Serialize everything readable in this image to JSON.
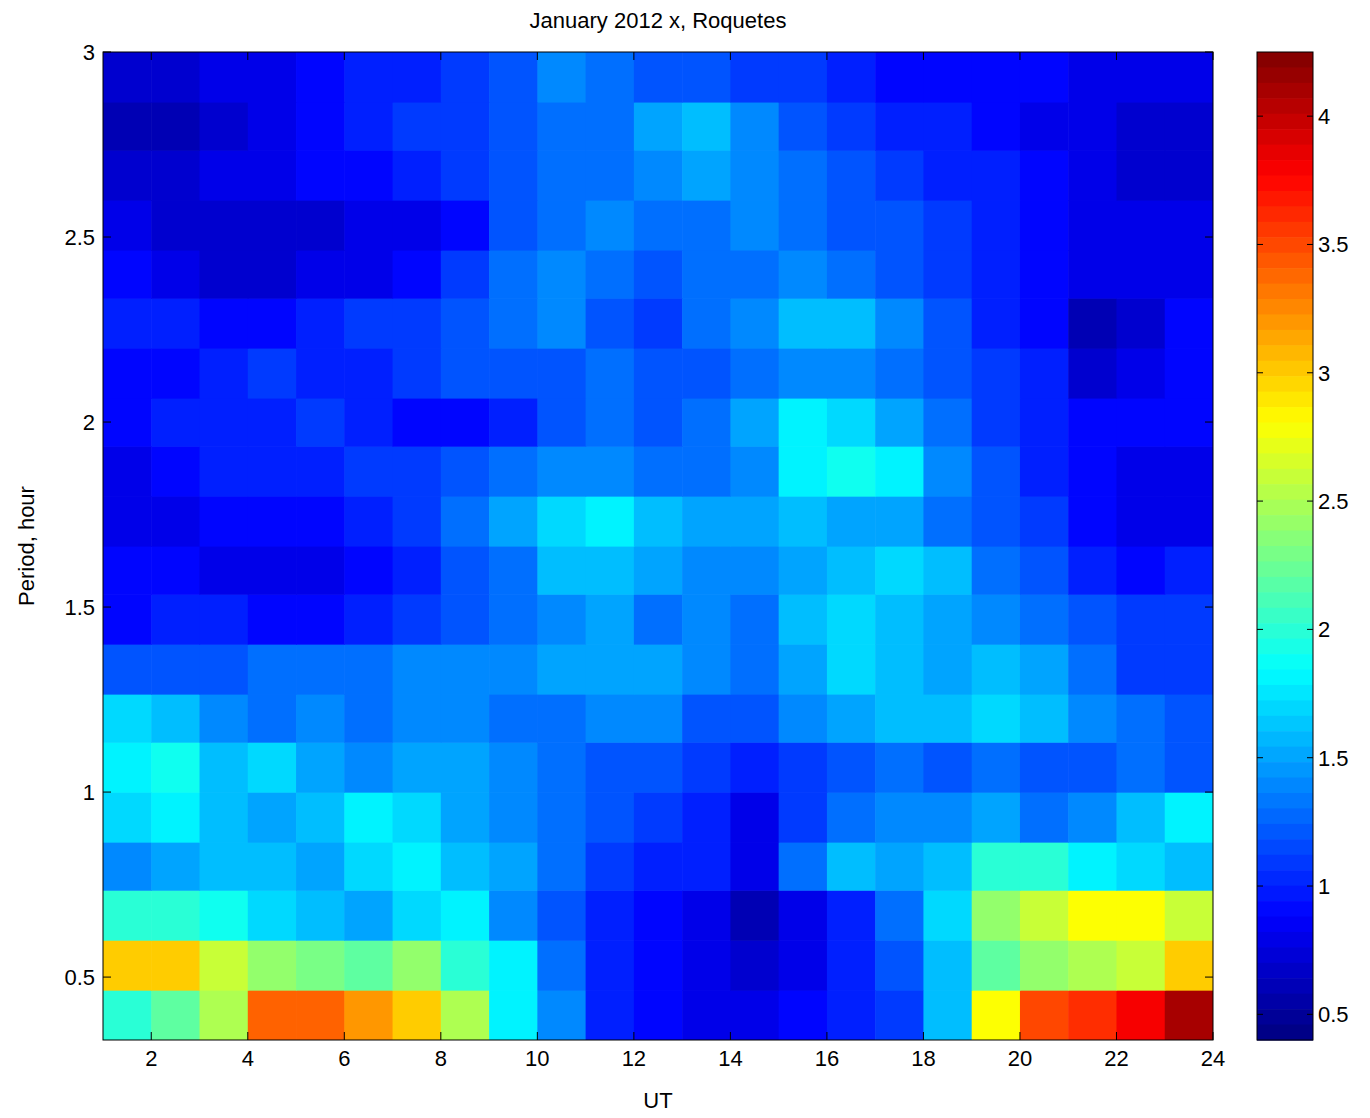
{
  "chart_data": {
    "type": "heatmap",
    "title": "January 2012 x, Roquetes",
    "xlabel": "UT",
    "ylabel": "Period, hour",
    "xlim": [
      1,
      24
    ],
    "ylim": [
      0.33,
      3
    ],
    "xticks": [
      2,
      4,
      6,
      8,
      10,
      12,
      14,
      16,
      18,
      20,
      22,
      24
    ],
    "yticks": [
      0.5,
      1,
      1.5,
      2,
      2.5,
      3
    ],
    "x": [
      1.5,
      2.5,
      3.5,
      4.5,
      5.5,
      6.5,
      7.5,
      8.5,
      9.5,
      10.5,
      11.5,
      12.5,
      13.5,
      14.5,
      15.5,
      16.5,
      17.5,
      18.5,
      19.5,
      20.5,
      21.5,
      22.5,
      23.5
    ],
    "y": [
      0.4,
      0.53,
      0.67,
      0.8,
      0.93,
      1.07,
      1.2,
      1.33,
      1.47,
      1.6,
      1.73,
      1.87,
      2.0,
      2.13,
      2.27,
      2.4,
      2.53,
      2.67,
      2.8,
      2.93
    ],
    "z": [
      [
        2.0,
        2.2,
        2.5,
        3.4,
        3.4,
        3.2,
        3.0,
        2.5,
        1.8,
        1.4,
        1.0,
        0.9,
        0.8,
        0.8,
        0.9,
        1.0,
        1.1,
        1.6,
        2.8,
        3.5,
        3.6,
        3.8,
        4.1
      ],
      [
        3.0,
        3.0,
        2.6,
        2.4,
        2.3,
        2.2,
        2.4,
        2.0,
        1.8,
        1.3,
        1.0,
        0.9,
        0.8,
        0.7,
        0.8,
        1.0,
        1.2,
        1.6,
        2.2,
        2.4,
        2.5,
        2.6,
        3.0
      ],
      [
        2.0,
        2.0,
        1.9,
        1.7,
        1.6,
        1.5,
        1.7,
        1.8,
        1.4,
        1.2,
        1.0,
        0.9,
        0.8,
        0.6,
        0.8,
        1.0,
        1.3,
        1.7,
        2.4,
        2.6,
        2.8,
        2.8,
        2.6
      ],
      [
        1.4,
        1.5,
        1.6,
        1.6,
        1.5,
        1.7,
        1.8,
        1.6,
        1.5,
        1.3,
        1.1,
        1.0,
        1.0,
        0.8,
        1.3,
        1.6,
        1.5,
        1.6,
        2.0,
        2.0,
        1.8,
        1.7,
        1.6
      ],
      [
        1.7,
        1.8,
        1.6,
        1.5,
        1.6,
        1.8,
        1.7,
        1.5,
        1.4,
        1.3,
        1.2,
        1.1,
        1.0,
        0.8,
        1.1,
        1.3,
        1.4,
        1.4,
        1.5,
        1.3,
        1.4,
        1.6,
        1.8
      ],
      [
        1.8,
        1.9,
        1.6,
        1.7,
        1.5,
        1.4,
        1.5,
        1.5,
        1.4,
        1.3,
        1.2,
        1.2,
        1.1,
        1.0,
        1.1,
        1.2,
        1.3,
        1.2,
        1.3,
        1.2,
        1.2,
        1.3,
        1.2
      ],
      [
        1.7,
        1.6,
        1.4,
        1.3,
        1.4,
        1.3,
        1.4,
        1.4,
        1.3,
        1.3,
        1.4,
        1.4,
        1.2,
        1.2,
        1.4,
        1.5,
        1.6,
        1.6,
        1.7,
        1.6,
        1.4,
        1.3,
        1.2
      ],
      [
        1.2,
        1.2,
        1.2,
        1.3,
        1.3,
        1.3,
        1.4,
        1.4,
        1.4,
        1.5,
        1.5,
        1.5,
        1.4,
        1.3,
        1.5,
        1.7,
        1.6,
        1.5,
        1.6,
        1.5,
        1.3,
        1.1,
        1.1
      ],
      [
        0.9,
        1.0,
        1.0,
        0.9,
        0.9,
        1.0,
        1.1,
        1.2,
        1.3,
        1.4,
        1.5,
        1.3,
        1.4,
        1.3,
        1.6,
        1.7,
        1.6,
        1.5,
        1.4,
        1.3,
        1.2,
        1.1,
        1.1
      ],
      [
        0.9,
        0.9,
        0.8,
        0.8,
        0.8,
        0.9,
        1.0,
        1.2,
        1.3,
        1.6,
        1.6,
        1.5,
        1.4,
        1.4,
        1.5,
        1.6,
        1.7,
        1.6,
        1.3,
        1.2,
        1.0,
        0.9,
        1.0
      ],
      [
        0.8,
        0.8,
        0.9,
        0.9,
        0.9,
        1.0,
        1.1,
        1.3,
        1.5,
        1.7,
        1.8,
        1.6,
        1.5,
        1.5,
        1.6,
        1.5,
        1.5,
        1.3,
        1.2,
        1.1,
        0.9,
        0.8,
        0.8
      ],
      [
        0.8,
        0.9,
        1.0,
        1.0,
        1.0,
        1.1,
        1.1,
        1.2,
        1.3,
        1.4,
        1.4,
        1.3,
        1.3,
        1.4,
        1.8,
        1.9,
        1.8,
        1.4,
        1.2,
        1.0,
        0.9,
        0.8,
        0.8
      ],
      [
        0.9,
        1.0,
        1.0,
        1.0,
        1.1,
        1.0,
        0.9,
        0.9,
        1.0,
        1.2,
        1.3,
        1.2,
        1.3,
        1.5,
        1.8,
        1.7,
        1.5,
        1.3,
        1.1,
        1.0,
        0.9,
        0.9,
        0.9
      ],
      [
        0.9,
        0.9,
        1.0,
        1.1,
        1.0,
        1.0,
        1.1,
        1.2,
        1.2,
        1.2,
        1.3,
        1.2,
        1.2,
        1.3,
        1.4,
        1.4,
        1.3,
        1.2,
        1.1,
        1.0,
        0.7,
        0.8,
        0.9
      ],
      [
        1.0,
        1.0,
        0.9,
        0.9,
        1.0,
        1.1,
        1.1,
        1.2,
        1.3,
        1.4,
        1.2,
        1.1,
        1.3,
        1.4,
        1.6,
        1.6,
        1.4,
        1.2,
        1.0,
        0.9,
        0.6,
        0.7,
        0.9
      ],
      [
        0.9,
        0.8,
        0.7,
        0.7,
        0.8,
        0.8,
        0.9,
        1.1,
        1.3,
        1.4,
        1.3,
        1.2,
        1.3,
        1.3,
        1.4,
        1.3,
        1.2,
        1.1,
        1.0,
        0.9,
        0.8,
        0.8,
        0.8
      ],
      [
        0.8,
        0.7,
        0.7,
        0.7,
        0.7,
        0.8,
        0.8,
        0.9,
        1.2,
        1.3,
        1.4,
        1.3,
        1.3,
        1.4,
        1.3,
        1.2,
        1.2,
        1.1,
        1.0,
        0.9,
        0.8,
        0.8,
        0.8
      ],
      [
        0.7,
        0.7,
        0.8,
        0.8,
        0.9,
        0.9,
        1.0,
        1.1,
        1.2,
        1.3,
        1.3,
        1.4,
        1.5,
        1.4,
        1.3,
        1.2,
        1.1,
        1.0,
        1.0,
        0.9,
        0.8,
        0.7,
        0.7
      ],
      [
        0.6,
        0.6,
        0.7,
        0.8,
        0.9,
        1.0,
        1.1,
        1.1,
        1.2,
        1.3,
        1.3,
        1.5,
        1.6,
        1.4,
        1.2,
        1.1,
        1.0,
        1.0,
        0.9,
        0.8,
        0.8,
        0.7,
        0.7
      ],
      [
        0.7,
        0.7,
        0.8,
        0.8,
        0.9,
        1.0,
        1.0,
        1.1,
        1.2,
        1.4,
        1.3,
        1.2,
        1.2,
        1.1,
        1.1,
        1.0,
        0.9,
        0.9,
        0.9,
        0.9,
        0.8,
        0.8,
        0.8
      ]
    ],
    "zlim": [
      0.4,
      4.25
    ],
    "zticks": [
      0.5,
      1,
      1.5,
      2,
      2.5,
      3,
      3.5,
      4
    ]
  }
}
